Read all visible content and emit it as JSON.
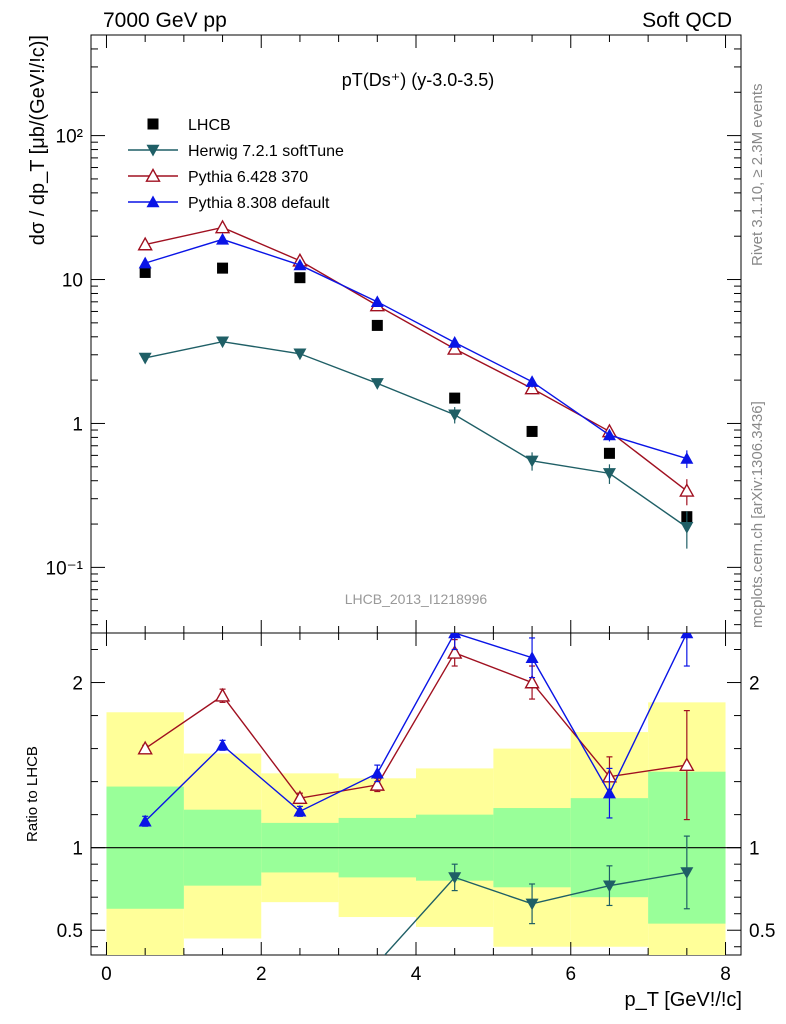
{
  "header": {
    "left": "7000 GeV pp",
    "right": "Soft QCD"
  },
  "side_labels": {
    "rivet": "Rivet 3.1.10, ≥ 2.3M events",
    "source": "mcplots.cern.ch [arXiv:1306.3436]"
  },
  "watermark": "LHCB_2013_I1218996",
  "chart_data": [
    {
      "type": "scatter",
      "panel": "main",
      "title": "pT(Ds⁺) (y-3.0-3.5)",
      "ylabel": "dσ / dp_T [μb/(GeV!/!c)]",
      "yscale": "log",
      "ylim": [
        0.035,
        500
      ],
      "xlim": [
        -0.2,
        8.2
      ],
      "y_ticks": [
        "10⁻¹",
        "1",
        "10",
        "10²"
      ],
      "legend_position": "top-left",
      "series": [
        {
          "name": "LHCB",
          "color": "#000000",
          "marker": "square",
          "x": [
            0.5,
            1.5,
            2.5,
            3.5,
            4.5,
            5.5,
            6.5,
            7.5
          ],
          "y": [
            11.2,
            12.0,
            10.3,
            4.8,
            1.5,
            0.88,
            0.62,
            0.225
          ]
        },
        {
          "name": "Herwig 7.2.1 softTune",
          "color": "#1f5f66",
          "marker": "triangle-down",
          "x": [
            0.5,
            1.5,
            2.5,
            3.5,
            4.5,
            5.5,
            6.5,
            7.5
          ],
          "y": [
            2.85,
            3.7,
            3.05,
            1.9,
            1.15,
            0.55,
            0.45,
            0.19
          ],
          "err": [
            0.05,
            0.1,
            0.1,
            0.12,
            0.15,
            0.08,
            0.07,
            0.055
          ]
        },
        {
          "name": "Pythia 6.428 370",
          "color": "#a01020",
          "marker": "triangle-open",
          "x": [
            0.5,
            1.5,
            2.5,
            3.5,
            4.5,
            5.5,
            6.5,
            7.5
          ],
          "y": [
            17.5,
            23.0,
            13.5,
            6.6,
            3.3,
            1.75,
            0.88,
            0.34
          ],
          "err": [
            0.3,
            0.5,
            0.4,
            0.3,
            0.2,
            0.15,
            0.08,
            0.07
          ]
        },
        {
          "name": "Pythia 8.308 default",
          "color": "#0a14e6",
          "marker": "triangle-up",
          "x": [
            0.5,
            1.5,
            2.5,
            3.5,
            4.5,
            5.5,
            6.5,
            7.5
          ],
          "y": [
            13.0,
            19.0,
            12.6,
            7.0,
            3.65,
            1.95,
            0.83,
            0.57
          ],
          "err": [
            0.3,
            0.5,
            0.4,
            0.35,
            0.2,
            0.17,
            0.08,
            0.08
          ]
        }
      ]
    },
    {
      "type": "line",
      "panel": "ratio",
      "ylabel": "Ratio to LHCB",
      "xlabel": "p_T [GeV!/!c]",
      "ylim": [
        0.35,
        2.3
      ],
      "xlim": [
        -0.2,
        8.2
      ],
      "x_ticks": [
        0,
        2,
        4,
        6,
        8
      ],
      "y_ticks": [
        0.5,
        1,
        2
      ],
      "bands": {
        "bins": [
          [
            0,
            1
          ],
          [
            1,
            2
          ],
          [
            2,
            3
          ],
          [
            3,
            4
          ],
          [
            4,
            5
          ],
          [
            5,
            6
          ],
          [
            6,
            7
          ],
          [
            7,
            8
          ]
        ],
        "yellow": [
          [
            0.18,
            1.82
          ],
          [
            0.45,
            1.57
          ],
          [
            0.67,
            1.45
          ],
          [
            0.58,
            1.42
          ],
          [
            0.52,
            1.48
          ],
          [
            0.4,
            1.6
          ],
          [
            0.4,
            1.7
          ],
          [
            0.25,
            1.88
          ]
        ],
        "green": [
          [
            0.63,
            1.37
          ],
          [
            0.77,
            1.23
          ],
          [
            0.85,
            1.15
          ],
          [
            0.82,
            1.18
          ],
          [
            0.8,
            1.2
          ],
          [
            0.76,
            1.24
          ],
          [
            0.7,
            1.3
          ],
          [
            0.54,
            1.46
          ]
        ]
      },
      "series": [
        {
          "name": "Herwig 7.2.1 softTune",
          "color": "#1f5f66",
          "marker": "triangle-down",
          "x": [
            3.5,
            4.5,
            5.5,
            6.5,
            7.5
          ],
          "y": [
            0.3,
            0.82,
            0.66,
            0.77,
            0.85
          ],
          "err": [
            0,
            0.08,
            0.12,
            0.12,
            0.22
          ]
        },
        {
          "name": "Pythia 6.428 370",
          "color": "#a01020",
          "marker": "triangle-open",
          "x": [
            0.5,
            1.5,
            2.5,
            3.5,
            4.5,
            5.5,
            6.5,
            7.5
          ],
          "y": [
            1.6,
            1.92,
            1.3,
            1.38,
            2.18,
            2.0,
            1.43,
            1.5
          ],
          "err": [
            0.02,
            0.04,
            0.03,
            0.04,
            0.08,
            0.1,
            0.12,
            0.33
          ]
        },
        {
          "name": "Pythia 8.308 default",
          "color": "#0a14e6",
          "marker": "triangle-up",
          "x": [
            0.5,
            1.5,
            2.5,
            3.5,
            4.5,
            5.5,
            6.5,
            7.5
          ],
          "y": [
            1.16,
            1.62,
            1.22,
            1.45,
            2.3,
            2.15,
            1.33,
            2.3
          ],
          "err": [
            0.03,
            0.03,
            0.03,
            0.05,
            0.1,
            0.12,
            0.15,
            0.2
          ]
        }
      ]
    }
  ]
}
